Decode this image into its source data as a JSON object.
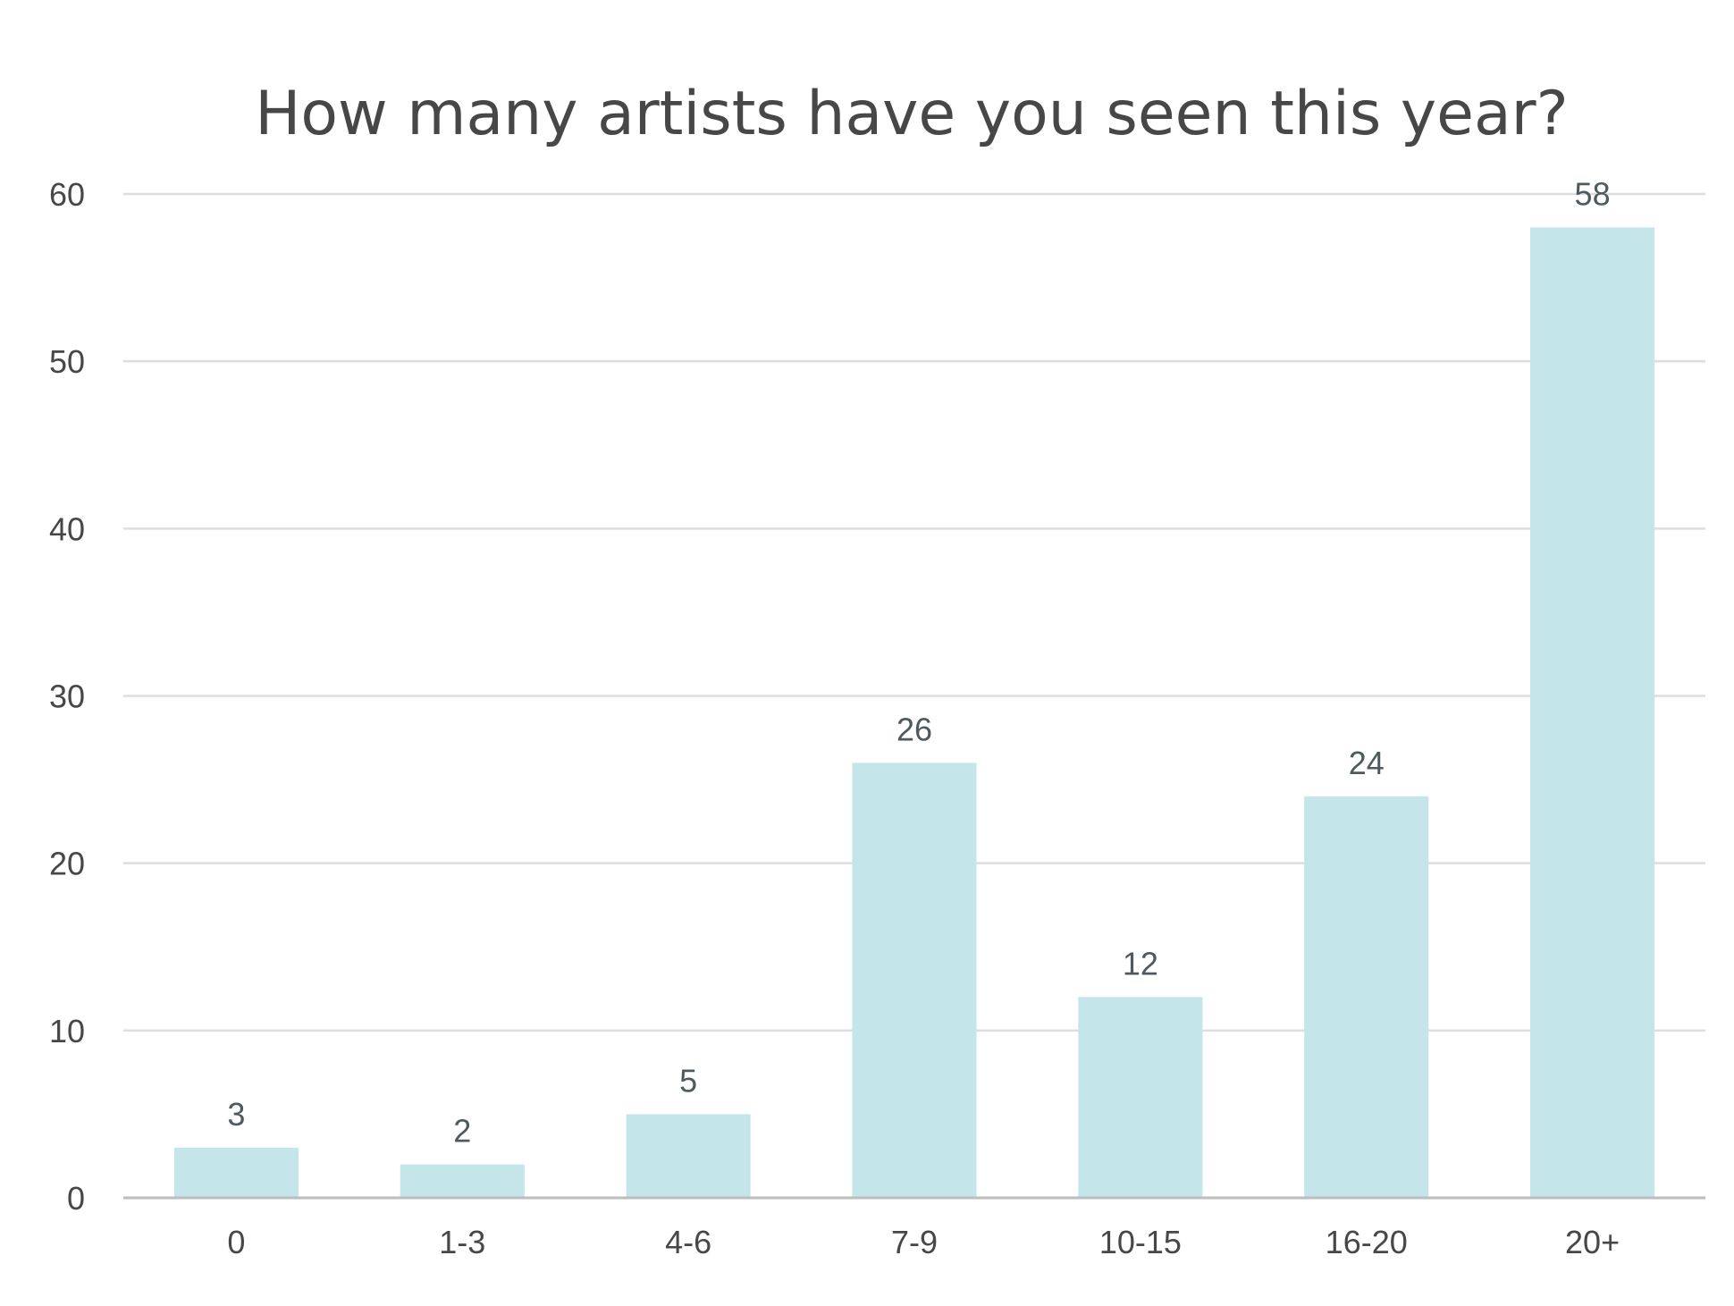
{
  "chart_data": {
    "type": "bar",
    "title": "How many artists have you seen this year?",
    "categories": [
      "0",
      "1-3",
      "4-6",
      "7-9",
      "10-15",
      "16-20",
      "20+"
    ],
    "values": [
      3,
      2,
      5,
      26,
      12,
      24,
      58
    ],
    "value_labels": [
      "3",
      "2",
      "5",
      "26",
      "12",
      "24",
      "58"
    ],
    "xlabel": "",
    "ylabel": "",
    "ylim": [
      0,
      60
    ],
    "yticks": [
      0,
      10,
      20,
      30,
      40,
      50,
      60
    ],
    "ytick_labels": [
      "0",
      "10",
      "20",
      "30",
      "40",
      "50",
      "60"
    ],
    "grid": true,
    "legend": "none",
    "colors": {
      "bar": "#c4e6ea",
      "grid": "#dedede",
      "axis": "#bdbdbd",
      "tick_text": "#474747",
      "label_text": "#4f5a5e",
      "title_text": "#474747"
    }
  }
}
